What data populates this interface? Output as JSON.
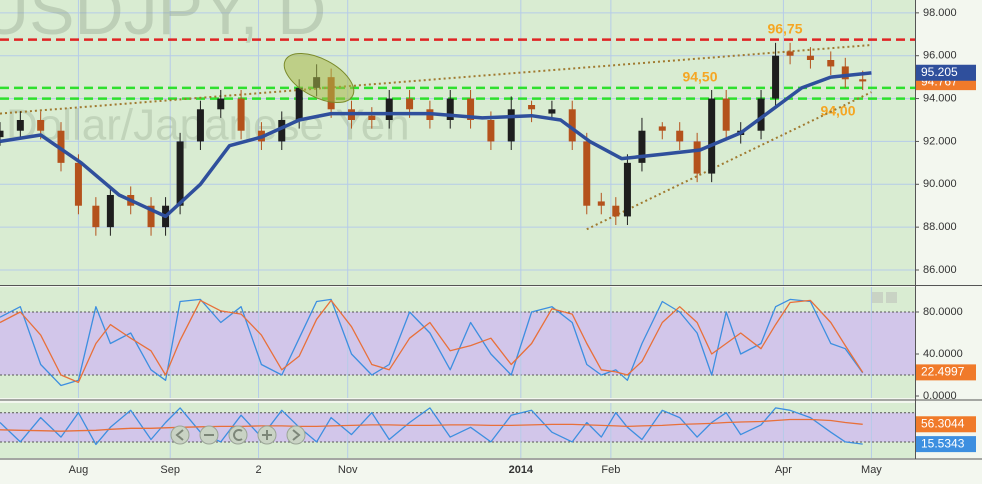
{
  "chart_data": [
    {
      "type": "candlestick",
      "watermark": "USDJPY, D",
      "watermark_subtitle": "Dollar/Japanese Yen",
      "x": [
        0,
        7,
        14,
        21,
        27,
        33,
        38,
        45,
        52,
        57,
        62,
        69,
        76,
        83,
        90,
        97,
        103,
        109,
        114,
        121,
        128,
        134,
        141,
        148,
        155,
        162,
        169,
        176,
        183,
        190,
        197,
        202,
        207,
        212,
        216,
        221,
        228,
        234,
        240,
        245,
        250,
        255,
        262,
        267,
        272,
        279,
        286,
        291,
        297
      ],
      "open": [
        92.2,
        92.5,
        93,
        92.5,
        91,
        89,
        88,
        89.5,
        89,
        88,
        89,
        92,
        93.5,
        94,
        92.5,
        92,
        93,
        94.5,
        95,
        93.5,
        93.2,
        93,
        94,
        93.5,
        93,
        94,
        93,
        92,
        93.7,
        93.3,
        93.5,
        92,
        89.2,
        89,
        88.5,
        91,
        92.7,
        92.5,
        92,
        90.5,
        94,
        92.3,
        92.5,
        94,
        96.2,
        96,
        95.8,
        95.5,
        94.9
      ],
      "high": [
        92.9,
        93.4,
        93.4,
        92.9,
        91.4,
        89.4,
        89.9,
        89.9,
        89.4,
        89.4,
        92.4,
        93.9,
        94.4,
        94.4,
        92.9,
        93.4,
        94.9,
        95.6,
        95.4,
        93.9,
        93.6,
        94.4,
        94.4,
        93.9,
        94.4,
        94.4,
        93.4,
        94.1,
        93.9,
        93.9,
        93.9,
        92.4,
        89.6,
        89.4,
        91.4,
        93.1,
        92.9,
        92.9,
        92.4,
        94.4,
        94.4,
        92.9,
        94.4,
        96.6,
        96.6,
        96.4,
        96.2,
        95.9,
        95.3
      ],
      "low": [
        91.8,
        92.1,
        92.1,
        90.6,
        88.6,
        87.6,
        87.6,
        88.6,
        87.6,
        87.6,
        88.6,
        91.6,
        93.1,
        92.1,
        91.6,
        91.6,
        92.6,
        94.1,
        93.1,
        92.6,
        92.6,
        92.6,
        93.1,
        92.6,
        92.6,
        92.6,
        91.6,
        91.6,
        92.9,
        93.1,
        91.6,
        88.6,
        88.6,
        88.1,
        88.1,
        90.6,
        92.1,
        91.6,
        90.1,
        90.1,
        92.1,
        91.9,
        92.1,
        93.6,
        95.6,
        95.4,
        95.1,
        94.5,
        94.4
      ],
      "close": [
        92.5,
        93,
        92.5,
        91,
        89,
        88,
        89.5,
        89,
        88,
        89,
        92,
        93.5,
        94,
        92.5,
        92,
        93,
        94.5,
        95,
        93.5,
        93,
        93,
        94,
        93.5,
        93,
        94,
        93,
        92,
        93.5,
        93.5,
        93.5,
        92,
        89,
        89,
        88.5,
        91,
        92.5,
        92.5,
        92,
        90.5,
        94,
        92.5,
        92.5,
        94,
        96,
        96,
        95.8,
        95.5,
        94.9,
        94.8
      ],
      "up_color": "#1e1e1e",
      "down_color": "#b4521c",
      "xlim": [
        0,
        315
      ],
      "ylim": [
        85.3,
        98.6
      ],
      "yticks": [
        {
          "value": 86,
          "label": "86.000"
        },
        {
          "value": 88,
          "label": "88.000"
        },
        {
          "value": 90,
          "label": "90.000"
        },
        {
          "value": 92,
          "label": "92.000"
        },
        {
          "value": 94,
          "label": "94.000"
        },
        {
          "value": 96,
          "label": "96.000"
        },
        {
          "value": 98,
          "label": "98.000"
        }
      ],
      "grid": true,
      "background": "#d9ecd2",
      "series": [
        {
          "color": "#2f4f9c",
          "x": [
            0,
            14,
            28,
            41,
            57,
            69,
            79,
            90,
            103,
            114,
            131,
            148,
            166,
            183,
            193,
            203,
            214,
            228,
            241,
            255,
            266,
            276,
            286,
            300
          ],
          "values": [
            92,
            92.3,
            91,
            89.5,
            88.5,
            90,
            91.8,
            92.2,
            93,
            93.3,
            93.3,
            93.3,
            93.1,
            93.2,
            93,
            92,
            91.2,
            91.4,
            91.6,
            92.4,
            93.5,
            94.5,
            95,
            95.2
          ]
        }
      ],
      "hlines": [
        {
          "value": 96.75,
          "color": "#e02424",
          "label": "96,75"
        },
        {
          "value": 94.5,
          "color": "#2ee02e",
          "label": "94,50"
        },
        {
          "value": 94,
          "color": "#2ee02e",
          "label": "94,00"
        }
      ],
      "label_color": "#f5a623",
      "trendlines": [
        {
          "x": [
            0,
            300
          ],
          "values": [
            93.3,
            96.5
          ]
        },
        {
          "x": [
            202,
            300
          ],
          "values": [
            87.9,
            94.3
          ]
        }
      ],
      "trend_color": "#a07a30",
      "markers": [
        {
          "value": 94.767,
          "label": "94.767",
          "color": "#f07a2a"
        },
        {
          "value": 95.205,
          "label": "95.205",
          "color": "#2f4f9c"
        }
      ]
    },
    {
      "type": "line",
      "x": [
        0,
        7,
        14,
        21,
        27,
        33,
        38,
        45,
        52,
        57,
        62,
        69,
        76,
        83,
        90,
        97,
        103,
        109,
        114,
        121,
        128,
        134,
        141,
        148,
        155,
        162,
        169,
        176,
        183,
        190,
        197,
        202,
        207,
        212,
        216,
        221,
        228,
        234,
        240,
        245,
        250,
        255,
        262,
        267,
        272,
        279,
        286,
        291,
        297
      ],
      "xlim": [
        0,
        315
      ],
      "ylim": [
        -1.9,
        103.8
      ],
      "yticks": [
        {
          "value": 0,
          "label": "0.0000"
        },
        {
          "value": 40,
          "label": "40.0000"
        },
        {
          "value": 80,
          "label": "80.0000"
        }
      ],
      "band": [
        20,
        80
      ],
      "band_color": "#d2c6ea",
      "background": "#d9ecd2",
      "series": [
        {
          "color": "#3d8fe0",
          "values": [
            75,
            85,
            30,
            10,
            15,
            85,
            50,
            60,
            25,
            15,
            90,
            92,
            70,
            85,
            30,
            20,
            55,
            90,
            92,
            40,
            20,
            30,
            80,
            60,
            25,
            70,
            40,
            20,
            80,
            85,
            70,
            30,
            20,
            25,
            15,
            50,
            90,
            80,
            60,
            20,
            80,
            40,
            50,
            85,
            92,
            90,
            50,
            45,
            22
          ]
        },
        {
          "color": "#e8703a",
          "values": [
            70,
            80,
            58,
            20,
            13,
            50,
            68,
            55,
            43,
            20,
            53,
            91,
            81,
            78,
            58,
            25,
            38,
            73,
            91,
            66,
            30,
            25,
            55,
            70,
            43,
            48,
            55,
            30,
            50,
            83,
            78,
            50,
            25,
            23,
            20,
            33,
            70,
            85,
            70,
            40,
            50,
            60,
            45,
            68,
            89,
            91,
            70,
            48,
            22.4997
          ]
        }
      ],
      "markers": [
        {
          "value": 22.4997,
          "label": "22.4997",
          "color": "#f07a2a"
        }
      ]
    },
    {
      "type": "line",
      "x": [
        0,
        7,
        14,
        21,
        27,
        33,
        38,
        45,
        52,
        57,
        62,
        69,
        76,
        83,
        90,
        97,
        103,
        109,
        114,
        121,
        128,
        134,
        141,
        148,
        155,
        162,
        169,
        176,
        183,
        190,
        197,
        202,
        207,
        212,
        216,
        221,
        228,
        234,
        240,
        245,
        250,
        255,
        262,
        267,
        272,
        279,
        286,
        291,
        297
      ],
      "xlim": [
        0,
        315
      ],
      "ylim": [
        -13,
        100
      ],
      "xticks": [
        {
          "value": 27,
          "label": "Aug"
        },
        {
          "value": 58.6,
          "label": "Sep"
        },
        {
          "value": 89,
          "label": "2"
        },
        {
          "value": 119.7,
          "label": "Nov"
        },
        {
          "value": 179.3,
          "label": "2014"
        },
        {
          "value": 210.3,
          "label": "Feb"
        },
        {
          "value": 269.7,
          "label": "Apr"
        },
        {
          "value": 300,
          "label": "May"
        }
      ],
      "band": [
        20,
        80
      ],
      "band_color": "#d2c6ea",
      "background": "#d9ecd2",
      "series": [
        {
          "color": "#3d8fe0",
          "values": [
            60,
            20,
            70,
            30,
            80,
            15,
            50,
            85,
            25,
            60,
            90,
            40,
            20,
            75,
            30,
            85,
            50,
            20,
            70,
            35,
            80,
            25,
            60,
            90,
            30,
            50,
            20,
            75,
            85,
            40,
            20,
            60,
            30,
            80,
            50,
            25,
            85,
            70,
            30,
            60,
            80,
            35,
            55,
            90,
            85,
            70,
            40,
            20,
            15.5343
          ]
        },
        {
          "color": "#e8703a",
          "values": [
            45,
            44,
            43,
            42,
            43,
            44,
            46,
            48,
            48,
            49,
            50,
            51,
            52,
            52,
            53,
            53,
            52,
            52,
            53,
            54,
            55,
            55,
            54,
            54,
            55,
            55,
            54,
            54,
            55,
            56,
            56,
            55,
            54,
            53,
            52,
            53,
            54,
            56,
            57,
            58,
            60,
            61,
            62,
            64,
            66,
            66,
            64,
            60,
            56.3044
          ]
        }
      ],
      "markers": [
        {
          "value": 56.3044,
          "label": "56.3044",
          "color": "#f07a2a"
        },
        {
          "value": 15.5343,
          "label": "15.5343",
          "color": "#3d8fe0"
        }
      ]
    }
  ]
}
